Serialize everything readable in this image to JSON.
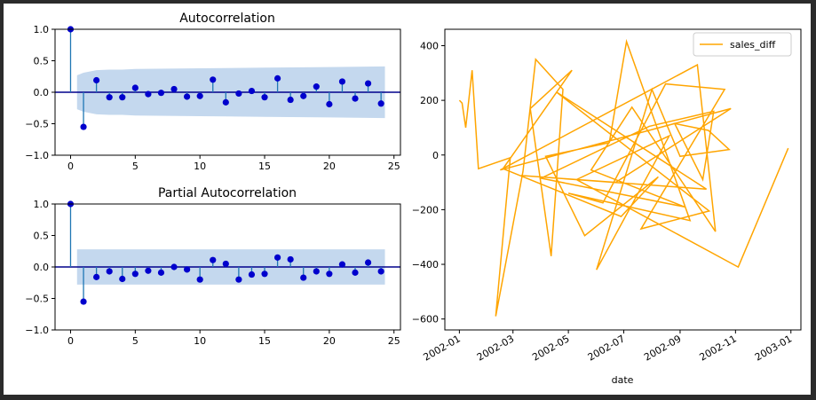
{
  "chart_data": [
    {
      "type": "stem",
      "title": "Autocorrelation",
      "xlim": [
        -1.2,
        25.5
      ],
      "ylim": [
        -1.0,
        1.0
      ],
      "xticks": [
        0,
        5,
        10,
        15,
        20,
        25
      ],
      "yticks": [
        -1.0,
        -0.5,
        0.0,
        0.5,
        1.0
      ],
      "ytick_labels": [
        "−1.0",
        "−0.5",
        "0.0",
        "0.5",
        "1.0"
      ],
      "lags": [
        0,
        1,
        2,
        3,
        4,
        5,
        6,
        7,
        8,
        9,
        10,
        11,
        12,
        13,
        14,
        15,
        16,
        17,
        18,
        19,
        20,
        21,
        22,
        23,
        24
      ],
      "values": [
        1.0,
        -0.55,
        0.19,
        -0.08,
        -0.08,
        0.07,
        -0.03,
        -0.01,
        0.05,
        -0.07,
        -0.06,
        0.2,
        -0.16,
        -0.02,
        0.02,
        -0.08,
        0.22,
        -0.12,
        -0.06,
        0.09,
        -0.19,
        0.17,
        -0.1,
        0.14,
        -0.18
      ],
      "conf_band": {
        "lags": [
          0.5,
          1,
          2,
          3,
          4,
          5,
          10,
          15,
          20,
          24.3
        ],
        "upper": [
          0.27,
          0.31,
          0.35,
          0.36,
          0.36,
          0.37,
          0.38,
          0.39,
          0.4,
          0.41
        ]
      },
      "colors": {
        "stem": "#1f77b4",
        "marker": "#0000cd",
        "band": "#c4d8ee",
        "zero": "#00008b"
      }
    },
    {
      "type": "stem",
      "title": "Partial Autocorrelation",
      "xlim": [
        -1.2,
        25.5
      ],
      "ylim": [
        -1.0,
        1.0
      ],
      "xticks": [
        0,
        5,
        10,
        15,
        20,
        25
      ],
      "yticks": [
        -1.0,
        -0.5,
        0.0,
        0.5,
        1.0
      ],
      "ytick_labels": [
        "−1.0",
        "−0.5",
        "0.0",
        "0.5",
        "1.0"
      ],
      "lags": [
        0,
        1,
        2,
        3,
        4,
        5,
        6,
        7,
        8,
        9,
        10,
        11,
        12,
        13,
        14,
        15,
        16,
        17,
        18,
        19,
        20,
        21,
        22,
        23,
        24
      ],
      "values": [
        1.0,
        -0.55,
        -0.16,
        -0.07,
        -0.19,
        -0.11,
        -0.06,
        -0.09,
        0.0,
        -0.04,
        -0.2,
        0.11,
        0.05,
        -0.2,
        -0.12,
        -0.11,
        0.15,
        0.12,
        -0.17,
        -0.07,
        -0.11,
        0.04,
        -0.09,
        0.07,
        -0.07
      ],
      "conf_band": {
        "lags": [
          0.5,
          24.3
        ],
        "upper": [
          0.28,
          0.28
        ]
      },
      "colors": {
        "stem": "#1f77b4",
        "marker": "#0000cd",
        "band": "#c4d8ee",
        "zero": "#00008b"
      }
    },
    {
      "type": "line",
      "xlabel": "date",
      "legend": "top-right",
      "series": [
        {
          "name": "sales_diff",
          "color": "#ffa500",
          "x": [
            "2002-01-01",
            "2002-01-04",
            "2002-01-08",
            "2002-01-15",
            "2002-01-22",
            "2002-02-26",
            "2002-02-10",
            "2002-03-12",
            "2002-03-26",
            "2002-04-25",
            "2002-04-12",
            "2002-03-20",
            "2002-05-05",
            "2002-02-18",
            "2002-06-28",
            "2002-08-08",
            "2002-05-19",
            "2002-04-06",
            "2002-06-15",
            "2002-07-04",
            "2002-09-12",
            "2002-05-01",
            "2002-06-08",
            "2002-08-16",
            "2002-10-20",
            "2002-07-20",
            "2002-10-03",
            "2002-04-18",
            "2002-09-30",
            "2002-03-10",
            "2002-06-22",
            "2002-10-27",
            "2002-02-15",
            "2002-09-20",
            "2002-10-10",
            "2002-07-10",
            "2002-05-26",
            "2002-09-06",
            "2002-04-01",
            "2002-07-29",
            "2002-10-08",
            "2002-09-26",
            "2002-08-26",
            "2002-10-02",
            "2002-10-25",
            "2002-09-01",
            "2002-08-01",
            "2002-06-01",
            "2002-08-20",
            "2002-05-10",
            "2002-11-04",
            "2002-12-29"
          ],
          "y": [
            200,
            190,
            100,
            310,
            -50,
            -10,
            -590,
            -60,
            350,
            240,
            -370,
            170,
            310,
            -50,
            -225,
            -80,
            -295,
            -5,
            45,
            415,
            -240,
            -140,
            -175,
            260,
            240,
            -270,
            -205,
            230,
            -125,
            -75,
            -100,
            170,
            -55,
            330,
            -280,
            175,
            -55,
            -190,
            -85,
            105,
            160,
            -90,
            115,
            90,
            20,
            -5,
            240,
            -420,
            70,
            -90,
            -410,
            25
          ]
        }
      ]
    }
  ]
}
